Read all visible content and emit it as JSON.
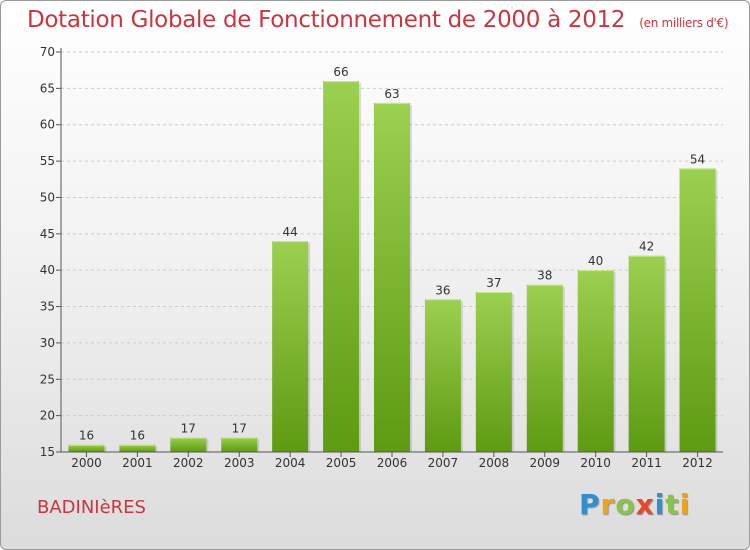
{
  "header": {
    "title": "Dotation Globale de Fonctionnement de 2000 à 2012",
    "unit": "(en milliers d'€)"
  },
  "footer": {
    "commune": "BADINIèRES",
    "logo_letters": [
      "P",
      "r",
      "o",
      "x",
      "i",
      "t",
      "i"
    ],
    "logo_colors": [
      "#2f8fd0",
      "#f0a21f",
      "#8bc34a",
      "#e8472b",
      "#2f8fd0",
      "#8bc34a",
      "#f0a21f"
    ]
  },
  "colors": {
    "bar_top": "#9cd050",
    "bar_bottom": "#5e9a12",
    "grid": "#cccccc",
    "axis": "#555555",
    "text": "#333333",
    "accent": "#c8373f"
  },
  "chart_data": {
    "type": "bar",
    "title": "Dotation Globale de Fonctionnement de 2000 à 2012",
    "subtitle": "(en milliers d'€)",
    "xlabel": "",
    "ylabel": "",
    "categories": [
      "2000",
      "2001",
      "2002",
      "2003",
      "2004",
      "2005",
      "2006",
      "2007",
      "2008",
      "2009",
      "2010",
      "2011",
      "2012"
    ],
    "values": [
      16,
      16,
      17,
      17,
      44,
      66,
      63,
      36,
      37,
      38,
      40,
      42,
      54
    ],
    "ylim": [
      15,
      70
    ],
    "yticks": [
      15,
      20,
      25,
      30,
      35,
      40,
      45,
      50,
      55,
      60,
      65,
      70
    ],
    "grid": true,
    "data_labels": true
  }
}
